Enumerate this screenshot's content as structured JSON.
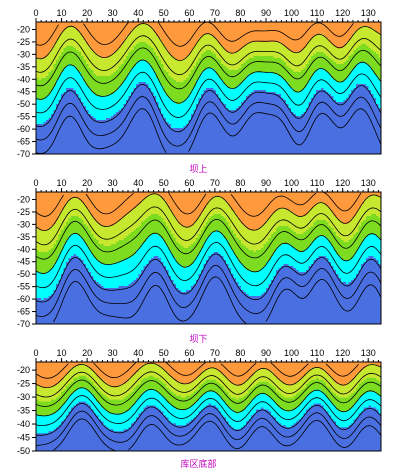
{
  "chart_data": [
    {
      "type": "heatmap",
      "title": "",
      "caption": "坝上",
      "x_ticks": [
        0,
        10,
        20,
        30,
        40,
        50,
        60,
        70,
        80,
        90,
        100,
        110,
        120,
        130
      ],
      "y_ticks": [
        -20,
        -25,
        -30,
        -35,
        -40,
        -45,
        -50,
        -55,
        -60,
        -65,
        -70
      ],
      "xlim": [
        0,
        135
      ],
      "ylim": [
        -70,
        -17
      ],
      "z_levels": [
        1,
        2,
        3,
        4,
        5,
        6,
        7,
        8,
        9
      ],
      "band_colors": [
        "#4a6fe0",
        "#00ffff",
        "#7ddc1f",
        "#c8e830",
        "#ff9a3c"
      ],
      "peak_x": [
        2,
        27,
        57,
        75,
        88,
        100,
        118
      ],
      "trough_x": [
        13,
        42,
        68,
        86,
        95,
        112,
        127
      ]
    },
    {
      "type": "heatmap",
      "title": "",
      "caption": "坝下",
      "x_ticks": [
        0,
        10,
        20,
        30,
        40,
        50,
        60,
        70,
        80,
        90,
        100,
        110,
        120,
        130
      ],
      "y_ticks": [
        -20,
        -25,
        -30,
        -35,
        -40,
        -45,
        -50,
        -55,
        -60,
        -65,
        -70
      ],
      "xlim": [
        0,
        135
      ],
      "ylim": [
        -70,
        -17
      ],
      "z_levels": [
        1,
        2,
        3,
        4,
        5,
        6,
        7,
        8,
        9
      ],
      "band_colors": [
        "#4a6fe0",
        "#00ffff",
        "#7ddc1f",
        "#c8e830",
        "#ff9a3c"
      ],
      "peak_x": [
        4,
        27,
        60,
        85,
        102,
        120
      ],
      "trough_x": [
        15,
        47,
        70,
        98,
        112,
        131
      ]
    },
    {
      "type": "heatmap",
      "title": "",
      "caption": "库区底部",
      "x_ticks": [
        0,
        10,
        20,
        30,
        40,
        50,
        60,
        70,
        80,
        90,
        100,
        110,
        120,
        130
      ],
      "y_ticks": [
        -20,
        -25,
        -30,
        -35,
        -40,
        -45,
        -50
      ],
      "xlim": [
        0,
        135
      ],
      "ylim": [
        -50,
        -17
      ],
      "z_levels": [
        1,
        2,
        3,
        4,
        5,
        6,
        7,
        8,
        9
      ],
      "band_colors": [
        "#4a6fe0",
        "#00ffff",
        "#7ddc1f",
        "#c8e830",
        "#ff9a3c"
      ],
      "peak_x": [
        5,
        30,
        60,
        80,
        100,
        120
      ],
      "trough_x": [
        18,
        45,
        68,
        88,
        110,
        130
      ]
    }
  ]
}
